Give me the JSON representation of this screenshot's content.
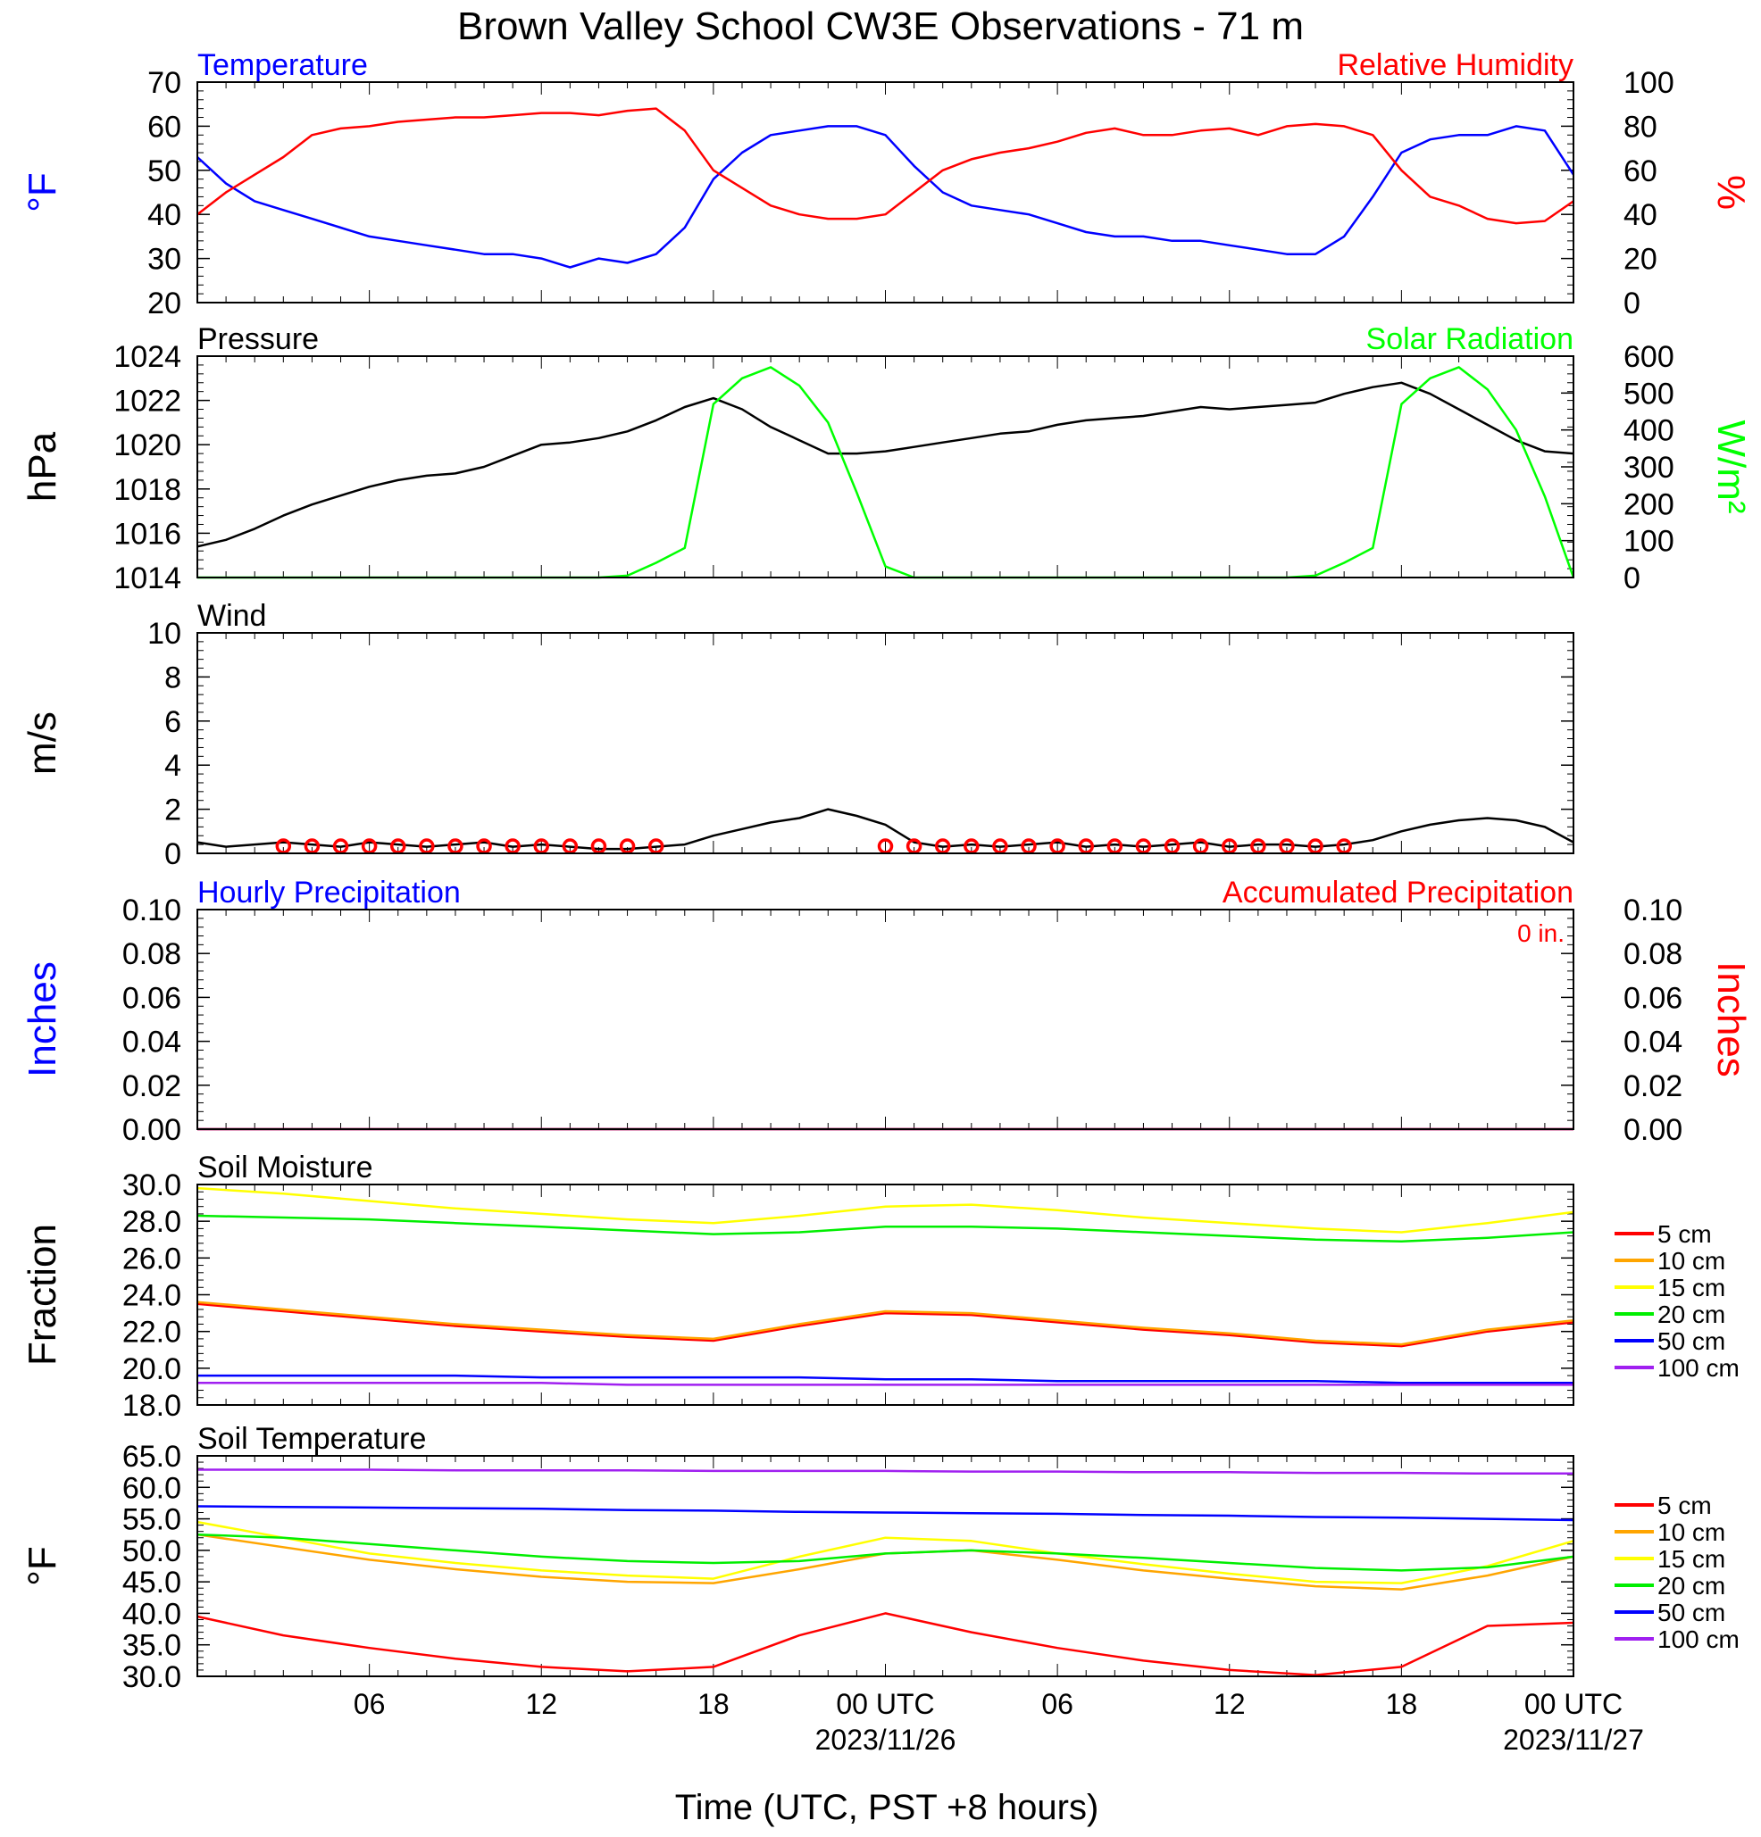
{
  "title": "Brown Valley School CW3E Observations - 71 m",
  "x_axis": {
    "label": "Time (UTC, PST +8 hours)",
    "tick_labels": [
      "06",
      "12",
      "18",
      "00 UTC",
      "06",
      "12",
      "18",
      "00 UTC"
    ],
    "date_labels": [
      "2023/11/26",
      "2023/11/27"
    ]
  },
  "colors": {
    "temperature": "#0000ff",
    "humidity": "#ff0000",
    "pressure": "#000000",
    "solar": "#00ff00",
    "wind": "#000000",
    "wind_barb": "#ff0000",
    "hourly_precip": "#0000ff",
    "accum_precip": "#ff0000",
    "d5": "#ff0000",
    "d10": "#ffa500",
    "d15": "#ffff00",
    "d20": "#00ee00",
    "d50": "#0000ff",
    "d100": "#a020f0"
  },
  "chart_data": [
    {
      "type": "line",
      "title_left": "Temperature",
      "title_right": "Relative Humidity",
      "ylabel": "°F",
      "ylabel_right": "%",
      "ylim": [
        20,
        70
      ],
      "ylim_right": [
        0,
        100
      ],
      "yticks": [
        "20",
        "30",
        "40",
        "50",
        "60",
        "70"
      ],
      "yticks_right": [
        "0",
        "20",
        "40",
        "60",
        "80",
        "100"
      ],
      "x": [
        0,
        1,
        2,
        3,
        4,
        5,
        6,
        7,
        8,
        9,
        10,
        11,
        12,
        13,
        14,
        15,
        16,
        17,
        18,
        19,
        20,
        21,
        22,
        23,
        24,
        25,
        26,
        27,
        28,
        29,
        30,
        31,
        32,
        33,
        34,
        35,
        36,
        37,
        38,
        39,
        40,
        41,
        42,
        43,
        44,
        45,
        46,
        47,
        48
      ],
      "series": [
        {
          "name": "Temperature",
          "axis": "left",
          "values": [
            53,
            47,
            43,
            41,
            39,
            37,
            35,
            34,
            33,
            32,
            31,
            31,
            30,
            28,
            30,
            29,
            31,
            37,
            48,
            54,
            58,
            59,
            60,
            60,
            58,
            51,
            45,
            42,
            41,
            40,
            38,
            36,
            35,
            35,
            34,
            34,
            33,
            32,
            31,
            31,
            35,
            44,
            54,
            57,
            58,
            58,
            60,
            59,
            49
          ]
        },
        {
          "name": "Relative Humidity",
          "axis": "right",
          "values": [
            40,
            50,
            58,
            66,
            76,
            79,
            80,
            82,
            83,
            84,
            84,
            85,
            86,
            86,
            85,
            87,
            88,
            78,
            60,
            52,
            44,
            40,
            38,
            38,
            40,
            50,
            60,
            65,
            68,
            70,
            73,
            77,
            79,
            76,
            76,
            78,
            79,
            76,
            80,
            81,
            80,
            76,
            60,
            48,
            44,
            38,
            36,
            37,
            46
          ]
        }
      ]
    },
    {
      "type": "line",
      "title_left": "Pressure",
      "title_right": "Solar Radiation",
      "ylabel": "hPa",
      "ylabel_right": "W/m²",
      "ylim": [
        1014,
        1024
      ],
      "ylim_right": [
        0,
        600
      ],
      "yticks": [
        "1014",
        "1016",
        "1018",
        "1020",
        "1022",
        "1024"
      ],
      "yticks_right": [
        "0",
        "100",
        "200",
        "300",
        "400",
        "500",
        "600"
      ],
      "x": [
        0,
        1,
        2,
        3,
        4,
        5,
        6,
        7,
        8,
        9,
        10,
        11,
        12,
        13,
        14,
        15,
        16,
        17,
        18,
        19,
        20,
        21,
        22,
        23,
        24,
        25,
        26,
        27,
        28,
        29,
        30,
        31,
        32,
        33,
        34,
        35,
        36,
        37,
        38,
        39,
        40,
        41,
        42,
        43,
        44,
        45,
        46,
        47,
        48
      ],
      "series": [
        {
          "name": "Pressure",
          "axis": "left",
          "values": [
            1015.4,
            1015.7,
            1016.2,
            1016.8,
            1017.3,
            1017.7,
            1018.1,
            1018.4,
            1018.6,
            1018.7,
            1019.0,
            1019.5,
            1020.0,
            1020.1,
            1020.3,
            1020.6,
            1021.1,
            1021.7,
            1022.1,
            1021.6,
            1020.8,
            1020.2,
            1019.6,
            1019.6,
            1019.7,
            1019.9,
            1020.1,
            1020.3,
            1020.5,
            1020.6,
            1020.9,
            1021.1,
            1021.2,
            1021.3,
            1021.5,
            1021.7,
            1021.6,
            1021.7,
            1021.8,
            1021.9,
            1022.3,
            1022.6,
            1022.8,
            1022.3,
            1021.6,
            1020.9,
            1020.2,
            1019.7,
            1019.6
          ]
        },
        {
          "name": "Solar Radiation",
          "axis": "right",
          "values": [
            0,
            0,
            0,
            0,
            0,
            0,
            0,
            0,
            0,
            0,
            0,
            0,
            0,
            0,
            0,
            5,
            40,
            80,
            470,
            540,
            570,
            520,
            420,
            230,
            30,
            0,
            0,
            0,
            0,
            0,
            0,
            0,
            0,
            0,
            0,
            0,
            0,
            0,
            0,
            5,
            40,
            80,
            470,
            540,
            570,
            510,
            400,
            220,
            0
          ]
        }
      ]
    },
    {
      "type": "line",
      "title_left": "Wind",
      "ylabel": "m/s",
      "ylim": [
        0,
        10
      ],
      "yticks": [
        "0",
        "2",
        "4",
        "6",
        "8",
        "10"
      ],
      "x": [
        0,
        1,
        2,
        3,
        4,
        5,
        6,
        7,
        8,
        9,
        10,
        11,
        12,
        13,
        14,
        15,
        16,
        17,
        18,
        19,
        20,
        21,
        22,
        23,
        24,
        25,
        26,
        27,
        28,
        29,
        30,
        31,
        32,
        33,
        34,
        35,
        36,
        37,
        38,
        39,
        40,
        41,
        42,
        43,
        44,
        45,
        46,
        47,
        48
      ],
      "series": [
        {
          "name": "Wind",
          "values": [
            0.5,
            0.3,
            0.4,
            0.5,
            0.4,
            0.3,
            0.5,
            0.4,
            0.3,
            0.4,
            0.5,
            0.3,
            0.4,
            0.3,
            0.2,
            0.2,
            0.3,
            0.4,
            0.8,
            1.1,
            1.4,
            1.6,
            2.0,
            1.7,
            1.3,
            0.5,
            0.3,
            0.4,
            0.3,
            0.4,
            0.5,
            0.3,
            0.4,
            0.3,
            0.4,
            0.5,
            0.3,
            0.4,
            0.4,
            0.3,
            0.4,
            0.6,
            1.0,
            1.3,
            1.5,
            1.6,
            1.5,
            1.2,
            0.5
          ]
        }
      ],
      "station_model_hours": [
        3,
        4,
        5,
        6,
        7,
        8,
        9,
        10,
        11,
        12,
        13,
        14,
        15,
        16,
        24,
        25,
        26,
        27,
        28,
        29,
        30,
        31,
        32,
        33,
        34,
        35,
        36,
        37,
        38,
        39,
        40
      ]
    },
    {
      "type": "line",
      "title_left": "Hourly Precipitation",
      "title_right": "Accumulated Precipitation",
      "annotation": "0 in.",
      "ylabel": "Inches",
      "ylabel_right": "Inches",
      "ylim": [
        0,
        0.1
      ],
      "ylim_right": [
        0,
        0.1
      ],
      "yticks": [
        "0.00",
        "0.02",
        "0.04",
        "0.06",
        "0.08",
        "0.10"
      ],
      "yticks_right": [
        "0.00",
        "0.02",
        "0.04",
        "0.06",
        "0.08",
        "0.10"
      ],
      "x": [
        0,
        48
      ],
      "series": [
        {
          "name": "Hourly Precipitation",
          "axis": "left",
          "values": [
            0,
            0
          ]
        },
        {
          "name": "Accumulated Precipitation",
          "axis": "right",
          "values": [
            0,
            0
          ]
        }
      ]
    },
    {
      "type": "line",
      "title_left": "Soil Moisture",
      "ylabel": "Fraction",
      "ylim": [
        18,
        30
      ],
      "yticks": [
        "18.0",
        "20.0",
        "22.0",
        "24.0",
        "26.0",
        "28.0",
        "30.0"
      ],
      "legend_position": "right",
      "x": [
        0,
        3,
        6,
        9,
        12,
        15,
        18,
        21,
        24,
        27,
        30,
        33,
        36,
        39,
        42,
        45,
        48
      ],
      "series": [
        {
          "name": "5 cm",
          "values": [
            23.5,
            23.1,
            22.7,
            22.3,
            22.0,
            21.7,
            21.5,
            22.3,
            23.0,
            22.9,
            22.5,
            22.1,
            21.8,
            21.4,
            21.2,
            22.0,
            22.5
          ]
        },
        {
          "name": "10 cm",
          "values": [
            23.6,
            23.2,
            22.8,
            22.4,
            22.1,
            21.8,
            21.6,
            22.4,
            23.1,
            23.0,
            22.6,
            22.2,
            21.9,
            21.5,
            21.3,
            22.1,
            22.6
          ]
        },
        {
          "name": "15 cm",
          "values": [
            29.8,
            29.5,
            29.1,
            28.7,
            28.4,
            28.1,
            27.9,
            28.3,
            28.8,
            28.9,
            28.6,
            28.2,
            27.9,
            27.6,
            27.4,
            27.9,
            28.5
          ]
        },
        {
          "name": "20 cm",
          "values": [
            28.3,
            28.2,
            28.1,
            27.9,
            27.7,
            27.5,
            27.3,
            27.4,
            27.7,
            27.7,
            27.6,
            27.4,
            27.2,
            27.0,
            26.9,
            27.1,
            27.4
          ]
        },
        {
          "name": "50 cm",
          "values": [
            19.6,
            19.6,
            19.6,
            19.6,
            19.5,
            19.5,
            19.5,
            19.5,
            19.4,
            19.4,
            19.3,
            19.3,
            19.3,
            19.3,
            19.2,
            19.2,
            19.2
          ]
        },
        {
          "name": "100 cm",
          "values": [
            19.2,
            19.2,
            19.2,
            19.2,
            19.2,
            19.1,
            19.1,
            19.1,
            19.1,
            19.1,
            19.1,
            19.1,
            19.1,
            19.1,
            19.1,
            19.1,
            19.1
          ]
        }
      ]
    },
    {
      "type": "line",
      "title_left": "Soil Temperature",
      "ylabel": "°F",
      "ylim": [
        30,
        65
      ],
      "yticks": [
        "30.0",
        "35.0",
        "40.0",
        "45.0",
        "50.0",
        "55.0",
        "60.0",
        "65.0"
      ],
      "legend_position": "right",
      "x": [
        0,
        3,
        6,
        9,
        12,
        15,
        18,
        21,
        24,
        27,
        30,
        33,
        36,
        39,
        42,
        45,
        48
      ],
      "series": [
        {
          "name": "5 cm",
          "values": [
            39.5,
            36.5,
            34.5,
            32.8,
            31.5,
            30.8,
            31.5,
            36.5,
            40.0,
            37.0,
            34.5,
            32.5,
            31.0,
            30.2,
            31.5,
            38.0,
            38.5
          ]
        },
        {
          "name": "10 cm",
          "values": [
            52.5,
            50.5,
            48.5,
            47.0,
            45.8,
            45.0,
            44.8,
            47.0,
            49.5,
            50.0,
            48.5,
            46.8,
            45.5,
            44.3,
            43.8,
            46.0,
            49.0
          ]
        },
        {
          "name": "15 cm",
          "values": [
            54.5,
            52.0,
            49.5,
            48.0,
            46.8,
            46.0,
            45.5,
            49.0,
            52.0,
            51.5,
            49.5,
            47.8,
            46.3,
            45.0,
            44.8,
            47.5,
            51.5
          ]
        },
        {
          "name": "20 cm",
          "values": [
            52.5,
            52.0,
            51.0,
            50.0,
            49.0,
            48.3,
            48.0,
            48.3,
            49.5,
            50.0,
            49.5,
            48.8,
            48.0,
            47.2,
            46.8,
            47.3,
            49.0
          ]
        },
        {
          "name": "50 cm",
          "values": [
            57.0,
            56.9,
            56.8,
            56.7,
            56.6,
            56.4,
            56.3,
            56.1,
            56.0,
            55.9,
            55.8,
            55.6,
            55.5,
            55.3,
            55.2,
            55.0,
            54.8
          ]
        },
        {
          "name": "100 cm",
          "values": [
            62.8,
            62.8,
            62.8,
            62.7,
            62.7,
            62.7,
            62.6,
            62.6,
            62.6,
            62.5,
            62.5,
            62.4,
            62.4,
            62.3,
            62.3,
            62.2,
            62.2
          ]
        }
      ]
    }
  ]
}
